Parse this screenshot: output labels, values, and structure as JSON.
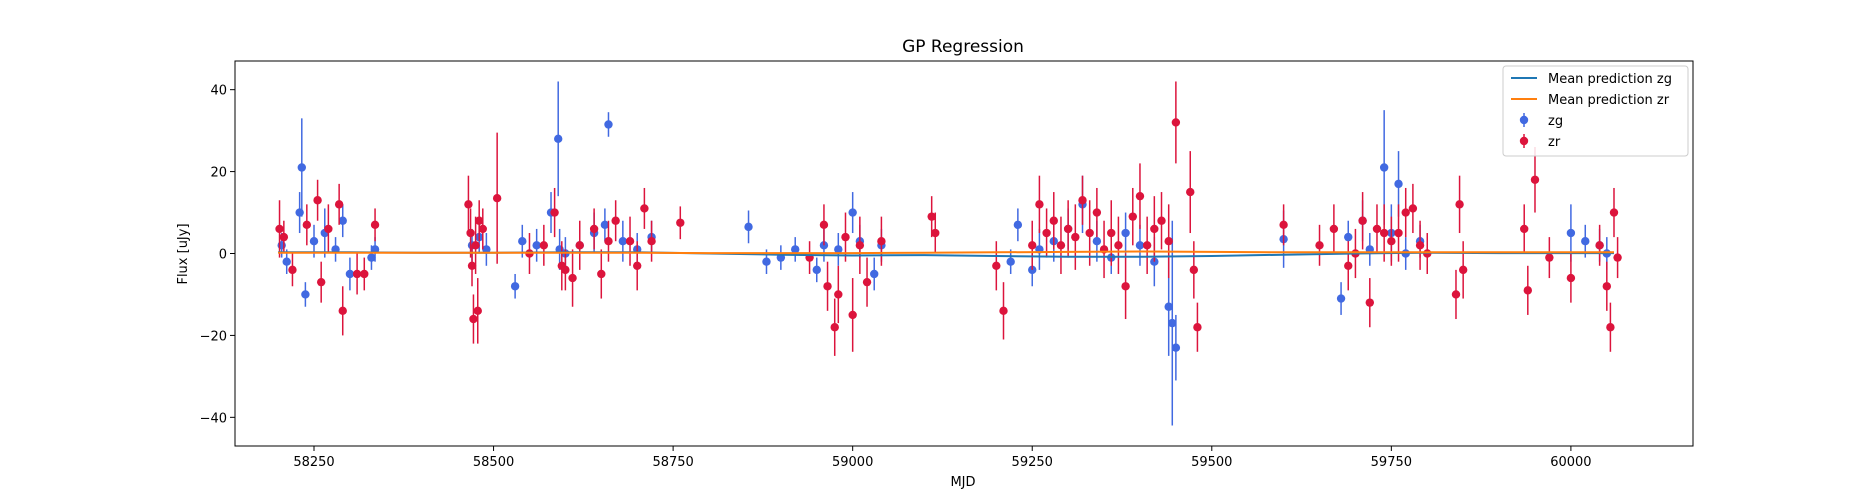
{
  "chart_data": {
    "type": "scatter",
    "title": "GP Regression",
    "xlabel": "MJD",
    "ylabel": "Flux [uJy]",
    "xlim": [
      58140,
      60170
    ],
    "ylim": [
      -47,
      47
    ],
    "xticks": [
      58250,
      58500,
      58750,
      59000,
      59250,
      59500,
      59750,
      60000
    ],
    "yticks": [
      -40,
      -20,
      0,
      20,
      40
    ],
    "grid": false,
    "legend": {
      "placement": "top-right",
      "entries": [
        "Mean prediction zg",
        "Mean prediction zr",
        "zg",
        "zr"
      ]
    },
    "series": [
      {
        "name": "Mean prediction zg",
        "kind": "line",
        "color": "#1f77b4",
        "x": [
          58200,
          58300,
          58400,
          58500,
          58600,
          58700,
          58800,
          58900,
          59000,
          59100,
          59200,
          59300,
          59400,
          59500,
          59600,
          59700,
          59800,
          59900,
          60000,
          60060
        ],
        "y": [
          0.3,
          0.3,
          0.2,
          0.2,
          0.3,
          0.3,
          0.0,
          -0.3,
          -0.5,
          -0.4,
          -0.6,
          -0.8,
          -0.8,
          -0.6,
          -0.3,
          0.0,
          0.2,
          0.1,
          0.1,
          0.1
        ]
      },
      {
        "name": "Mean prediction zr",
        "kind": "line",
        "color": "#ff7f0e",
        "x": [
          58200,
          58300,
          58400,
          58500,
          58600,
          58700,
          58800,
          58900,
          59000,
          59100,
          59200,
          59300,
          59400,
          59500,
          59600,
          59700,
          59800,
          59900,
          60000,
          60060
        ],
        "y": [
          0.2,
          0.2,
          0.2,
          0.2,
          0.2,
          0.2,
          0.1,
          0.1,
          0.1,
          0.2,
          0.3,
          0.4,
          0.5,
          0.4,
          0.3,
          0.3,
          0.3,
          0.3,
          0.3,
          0.3
        ]
      },
      {
        "name": "zg",
        "kind": "errorbar",
        "color": "#4169e1",
        "x": [
          58205,
          58212,
          58230,
          58233,
          58238,
          58250,
          58265,
          58280,
          58290,
          58300,
          58330,
          58335,
          58470,
          58480,
          58490,
          58530,
          58540,
          58560,
          58580,
          58590,
          58592,
          58600,
          58620,
          58640,
          58655,
          58660,
          58680,
          58700,
          58720,
          58855,
          58880,
          58900,
          58920,
          58950,
          58960,
          58980,
          59000,
          59010,
          59030,
          59040,
          59220,
          59230,
          59250,
          59260,
          59280,
          59300,
          59320,
          59340,
          59360,
          59380,
          59400,
          59420,
          59440,
          59445,
          59450,
          59600,
          59680,
          59690,
          59710,
          59720,
          59740,
          59750,
          59760,
          59770,
          59790,
          60000,
          60020,
          60040,
          60050
        ],
        "y": [
          2,
          -2,
          10,
          21,
          -10,
          3,
          5,
          1,
          8,
          -5,
          -1,
          1,
          2,
          4,
          1,
          -8,
          3,
          2,
          10,
          28,
          1,
          0,
          2,
          5,
          7,
          31.5,
          3,
          1,
          4,
          6.5,
          -2,
          -1,
          1,
          -4,
          2,
          1,
          10,
          3,
          -5,
          2,
          -2,
          7,
          -4,
          1,
          3,
          6,
          12,
          3,
          -1,
          5,
          2,
          -2,
          -13,
          -17,
          -23,
          3.5,
          -11,
          4,
          8,
          1,
          21,
          5,
          17,
          0,
          3,
          5,
          3,
          2,
          0
        ],
        "yerr": [
          3,
          3,
          5,
          12,
          3,
          4,
          6,
          3,
          4,
          4,
          3,
          3,
          4,
          4,
          4,
          3,
          4,
          4,
          5,
          14,
          5,
          4,
          4,
          5,
          4,
          3,
          5,
          4,
          4,
          4,
          3,
          3,
          3,
          3,
          4,
          4,
          5,
          4,
          4,
          4,
          3,
          4,
          4,
          5,
          5,
          5,
          7,
          5,
          4,
          5,
          5,
          6,
          12,
          25,
          8,
          7,
          4,
          4,
          5,
          4,
          14,
          7,
          8,
          4,
          4,
          7,
          4,
          4,
          4
        ]
      },
      {
        "name": "zr",
        "kind": "errorbar",
        "color": "#dc143c",
        "x": [
          58202,
          58208,
          58220,
          58240,
          58255,
          58260,
          58270,
          58285,
          58290,
          58310,
          58320,
          58335,
          58465,
          58468,
          58470,
          58472,
          58475,
          58478,
          58480,
          58485,
          58505,
          58550,
          58570,
          58585,
          58595,
          58600,
          58610,
          58620,
          58640,
          58650,
          58660,
          58670,
          58690,
          58700,
          58710,
          58720,
          58760,
          58940,
          58960,
          58965,
          58975,
          58980,
          58990,
          59000,
          59010,
          59020,
          59040,
          59110,
          59115,
          59200,
          59210,
          59250,
          59260,
          59270,
          59280,
          59290,
          59300,
          59310,
          59320,
          59330,
          59340,
          59350,
          59360,
          59370,
          59380,
          59390,
          59400,
          59410,
          59420,
          59430,
          59440,
          59450,
          59470,
          59475,
          59480,
          59600,
          59650,
          59670,
          59690,
          59700,
          59710,
          59720,
          59730,
          59740,
          59750,
          59760,
          59770,
          59780,
          59790,
          59800,
          59840,
          59845,
          59850,
          59935,
          59940,
          59950,
          59970,
          60000,
          60040,
          60050,
          60055,
          60060,
          60065
        ],
        "y": [
          6,
          4,
          -4,
          7,
          13,
          -7,
          6,
          12,
          -14,
          -5,
          -5,
          7,
          12,
          5,
          -3,
          -16,
          2,
          -14,
          8,
          6,
          13.5,
          0,
          2,
          10,
          -3,
          -4,
          -6,
          2,
          6,
          -5,
          3,
          8,
          3,
          -3,
          11,
          3,
          7.5,
          -1,
          7,
          -8,
          -18,
          -10,
          4,
          -15,
          2,
          -7,
          3,
          9,
          5,
          -3,
          -14,
          2,
          12,
          5,
          8,
          2,
          6,
          4,
          13,
          5,
          10,
          1,
          5,
          2,
          -8,
          9,
          14,
          2,
          6,
          8,
          3,
          32,
          15,
          -4,
          -18,
          7,
          2,
          6,
          -3,
          0,
          8,
          -12,
          6,
          5,
          3,
          5,
          10,
          11,
          2,
          0,
          -10,
          12,
          -4,
          6,
          -9,
          18,
          -1,
          -6,
          2,
          -8,
          -18,
          10,
          -1
        ],
        "yerr": [
          7,
          4,
          4,
          5,
          5,
          5,
          6,
          5,
          6,
          5,
          4,
          4,
          7,
          6,
          5,
          6,
          7,
          8,
          5,
          5,
          16,
          5,
          5,
          6,
          6,
          5,
          7,
          6,
          5,
          6,
          5,
          5,
          6,
          6,
          5,
          5,
          4,
          4,
          5,
          6,
          7,
          7,
          6,
          9,
          7,
          6,
          6,
          5,
          5,
          6,
          7,
          6,
          7,
          6,
          7,
          7,
          7,
          8,
          6,
          8,
          6,
          7,
          8,
          7,
          8,
          7,
          8,
          7,
          8,
          7,
          9,
          10,
          10,
          7,
          6,
          5,
          5,
          6,
          6,
          6,
          7,
          6,
          6,
          7,
          6,
          7,
          6,
          6,
          6,
          5,
          6,
          7,
          7,
          6,
          6,
          8,
          5,
          6,
          5,
          6,
          6,
          6,
          5
        ]
      }
    ]
  }
}
